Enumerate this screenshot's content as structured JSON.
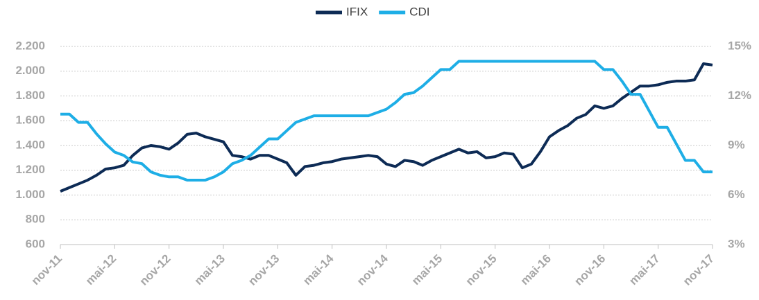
{
  "chart_data": {
    "type": "line",
    "categories": [
      "nov-11",
      null,
      null,
      null,
      null,
      null,
      "mai-12",
      null,
      null,
      null,
      null,
      null,
      "nov-12",
      null,
      null,
      null,
      null,
      null,
      "mai-13",
      null,
      null,
      null,
      null,
      null,
      "nov-13",
      null,
      null,
      null,
      null,
      null,
      "mai-14",
      null,
      null,
      null,
      null,
      null,
      "nov-14",
      null,
      null,
      null,
      null,
      null,
      "mai-15",
      null,
      null,
      null,
      null,
      null,
      "nov-15",
      null,
      null,
      null,
      null,
      null,
      "mai-16",
      null,
      null,
      null,
      null,
      null,
      "nov-16",
      null,
      null,
      null,
      null,
      null,
      "mai-17",
      null,
      null,
      null,
      null,
      null,
      "nov-17"
    ],
    "series": [
      {
        "name": "IFIX",
        "color": "#0d2b55",
        "values": [
          1030,
          1060,
          1090,
          1120,
          1160,
          1210,
          1220,
          1240,
          1320,
          1380,
          1400,
          1390,
          1370,
          1420,
          1490,
          1500,
          1470,
          1450,
          1430,
          1320,
          1310,
          1290,
          1320,
          1320,
          1290,
          1260,
          1160,
          1230,
          1240,
          1260,
          1270,
          1290,
          1300,
          1310,
          1320,
          1310,
          1250,
          1230,
          1280,
          1270,
          1240,
          1280,
          1310,
          1340,
          1370,
          1340,
          1350,
          1300,
          1310,
          1340,
          1330,
          1220,
          1250,
          1350,
          1470,
          1520,
          1560,
          1620,
          1650,
          1720,
          1700,
          1720,
          1780,
          1830,
          1880,
          1880,
          1890,
          1910,
          1920,
          1920,
          1930,
          2060,
          2050
        ]
      },
      {
        "name": "CDI",
        "color": "#1eaee6",
        "axis": "y2",
        "values": [
          10.9,
          10.9,
          10.4,
          10.4,
          9.7,
          9.1,
          8.6,
          8.4,
          8.0,
          7.9,
          7.4,
          7.2,
          7.1,
          7.1,
          6.9,
          6.9,
          6.9,
          7.1,
          7.4,
          7.9,
          8.1,
          8.4,
          8.9,
          9.4,
          9.4,
          9.9,
          10.4,
          10.6,
          10.8,
          10.8,
          10.8,
          10.8,
          10.8,
          10.8,
          10.8,
          11.0,
          11.2,
          11.6,
          12.1,
          12.2,
          12.6,
          13.1,
          13.6,
          13.6,
          14.1,
          14.1,
          14.1,
          14.1,
          14.1,
          14.1,
          14.1,
          14.1,
          14.1,
          14.1,
          14.1,
          14.1,
          14.1,
          14.1,
          14.1,
          14.1,
          13.6,
          13.6,
          12.9,
          12.1,
          12.1,
          11.1,
          10.1,
          10.1,
          9.1,
          8.1,
          8.1,
          7.4,
          7.4
        ]
      }
    ],
    "ylim": [
      600,
      2200
    ],
    "yticks": [
      {
        "value": 600,
        "label": "600"
      },
      {
        "value": 800,
        "label": "800"
      },
      {
        "value": 1000,
        "label": "1.000"
      },
      {
        "value": 1200,
        "label": "1.200"
      },
      {
        "value": 1400,
        "label": "1.400"
      },
      {
        "value": 1600,
        "label": "1.600"
      },
      {
        "value": 1800,
        "label": "1.800"
      },
      {
        "value": 2000,
        "label": "2.000"
      },
      {
        "value": 2200,
        "label": "2.200"
      }
    ],
    "y2lim": [
      3,
      15
    ],
    "y2ticks": [
      {
        "value": 3,
        "label": "3%"
      },
      {
        "value": 6,
        "label": "6%"
      },
      {
        "value": 9,
        "label": "9%"
      },
      {
        "value": 12,
        "label": "12%"
      },
      {
        "value": 15,
        "label": "15%"
      }
    ],
    "grid": true,
    "legend": "top"
  }
}
